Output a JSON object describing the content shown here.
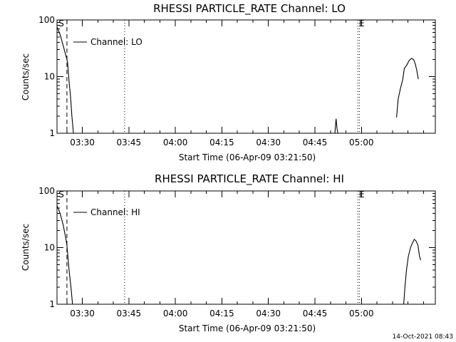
{
  "footer_timestamp": "14-Oct-2021 08:43",
  "chart_data": [
    {
      "type": "line",
      "title": "RHESSI PARTICLE_RATE Channel: LO",
      "xlabel": "Start Time (06-Apr-09 03:21:50)",
      "ylabel": "Counts/sec",
      "yscale": "log",
      "ylim": [
        1,
        100
      ],
      "xlim_min": [
        0,
        122
      ],
      "x_unit": "minutes after 03:21:50",
      "x_ticks": [
        {
          "m": 8.17,
          "label": "03:30"
        },
        {
          "m": 23.17,
          "label": "03:45"
        },
        {
          "m": 38.17,
          "label": "04:00"
        },
        {
          "m": 53.17,
          "label": "04:15"
        },
        {
          "m": 68.17,
          "label": "04:30"
        },
        {
          "m": 83.17,
          "label": "04:45"
        },
        {
          "m": 98.17,
          "label": "05:00"
        }
      ],
      "y_ticks": [
        {
          "v": 1,
          "label": "1"
        },
        {
          "v": 10,
          "label": "10"
        },
        {
          "v": 100,
          "label": "100"
        }
      ],
      "legend": "Channel: LO",
      "markers": [
        {
          "m": 3.2,
          "style": "dashed",
          "label": "S"
        },
        {
          "m": 21.8,
          "style": "dotted",
          "label": ""
        },
        {
          "m": 97.0,
          "style": "dotted",
          "label": ""
        },
        {
          "m": 0.3,
          "style": "none",
          "label": ""
        },
        {
          "m": 97.5,
          "style": "dotted",
          "label": ""
        }
      ],
      "event_marks": [
        {
          "m": 0.3,
          "text": "S"
        },
        {
          "m": 97.2,
          "text": "E"
        }
      ],
      "series": [
        {
          "segments": [
            [
              [
                0,
                75
              ],
              [
                1,
                55
              ],
              [
                2,
                35
              ],
              [
                3,
                22
              ],
              [
                3.4,
                18
              ],
              [
                4,
                7
              ],
              [
                4.3,
                5
              ],
              [
                4.8,
                2
              ],
              [
                5.3,
                1
              ]
            ],
            [
              [
                89.6,
                1
              ],
              [
                90.0,
                1.8
              ],
              [
                90.3,
                1.2
              ],
              [
                90.6,
                1
              ]
            ],
            [
              [
                109.5,
                1.9
              ],
              [
                110,
                4
              ],
              [
                110.7,
                6
              ],
              [
                111.5,
                9
              ],
              [
                112,
                14
              ],
              [
                112.8,
                16
              ],
              [
                113.5,
                19
              ],
              [
                114.3,
                21
              ],
              [
                115,
                20
              ],
              [
                115.5,
                17
              ],
              [
                116,
                13
              ],
              [
                116.5,
                9
              ]
            ]
          ]
        }
      ]
    },
    {
      "type": "line",
      "title": "RHESSI PARTICLE_RATE Channel: HI",
      "xlabel": "Start Time (06-Apr-09 03:21:50)",
      "ylabel": "Counts/sec",
      "yscale": "log",
      "ylim": [
        1,
        100
      ],
      "xlim_min": [
        0,
        122
      ],
      "x_unit": "minutes after 03:21:50",
      "x_ticks": [
        {
          "m": 8.17,
          "label": "03:30"
        },
        {
          "m": 23.17,
          "label": "03:45"
        },
        {
          "m": 38.17,
          "label": "04:00"
        },
        {
          "m": 53.17,
          "label": "04:15"
        },
        {
          "m": 68.17,
          "label": "04:30"
        },
        {
          "m": 83.17,
          "label": "04:45"
        },
        {
          "m": 98.17,
          "label": "05:00"
        }
      ],
      "y_ticks": [
        {
          "v": 1,
          "label": "1"
        },
        {
          "v": 10,
          "label": "10"
        },
        {
          "v": 100,
          "label": "100"
        }
      ],
      "legend": "Channel: HI",
      "markers": [
        {
          "m": 3.2,
          "style": "dashed",
          "label": "S"
        },
        {
          "m": 21.8,
          "style": "dotted",
          "label": ""
        },
        {
          "m": 97.0,
          "style": "dotted",
          "label": ""
        },
        {
          "m": 97.5,
          "style": "dotted",
          "label": ""
        }
      ],
      "event_marks": [
        {
          "m": 0.3,
          "text": "S"
        },
        {
          "m": 97.2,
          "text": "E"
        }
      ],
      "series": [
        {
          "segments": [
            [
              [
                0,
                55
              ],
              [
                1,
                40
              ],
              [
                2,
                25
              ],
              [
                2.8,
                15
              ],
              [
                3.2,
                11
              ],
              [
                3.6,
                6
              ],
              [
                4,
                3.5
              ],
              [
                4.5,
                2
              ],
              [
                5,
                1
              ]
            ],
            [
              [
                111.8,
                1
              ],
              [
                112.2,
                2
              ],
              [
                112.7,
                4
              ],
              [
                113.3,
                7
              ],
              [
                114,
                10
              ],
              [
                114.6,
                12
              ],
              [
                115.2,
                14
              ],
              [
                115.8,
                13
              ],
              [
                116.4,
                11
              ],
              [
                116.9,
                7
              ],
              [
                117.3,
                6
              ]
            ]
          ]
        }
      ]
    }
  ]
}
